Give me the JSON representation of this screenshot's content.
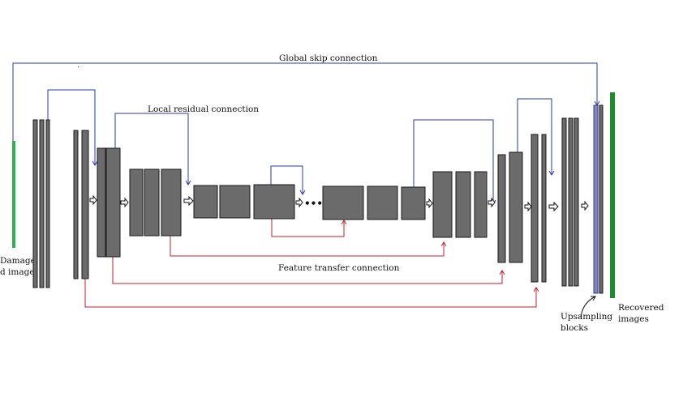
{
  "colors": {
    "block": "#6b6b6b",
    "block_stroke": "#1a1a1a",
    "global_skip": "#2b3aa8",
    "local_residual": "#2b3aa8",
    "feature_transfer": "#c0202a",
    "input_bar": "#2db34a",
    "output_bar": "#1f8a32",
    "upsample_bar": "#7d86c4"
  },
  "labels": {
    "global_skip": "Global skip connection",
    "local_residual": "Local residual connection",
    "feature_transfer": "Feature transfer connection",
    "damaged_line1": "Damage",
    "damaged_line2": "d image",
    "upsampling_line1": "Upsampling",
    "upsampling_line2": "blocks",
    "recovered_line1": "Recovered",
    "recovered_line2": "images",
    "ellipsis": "•••"
  }
}
